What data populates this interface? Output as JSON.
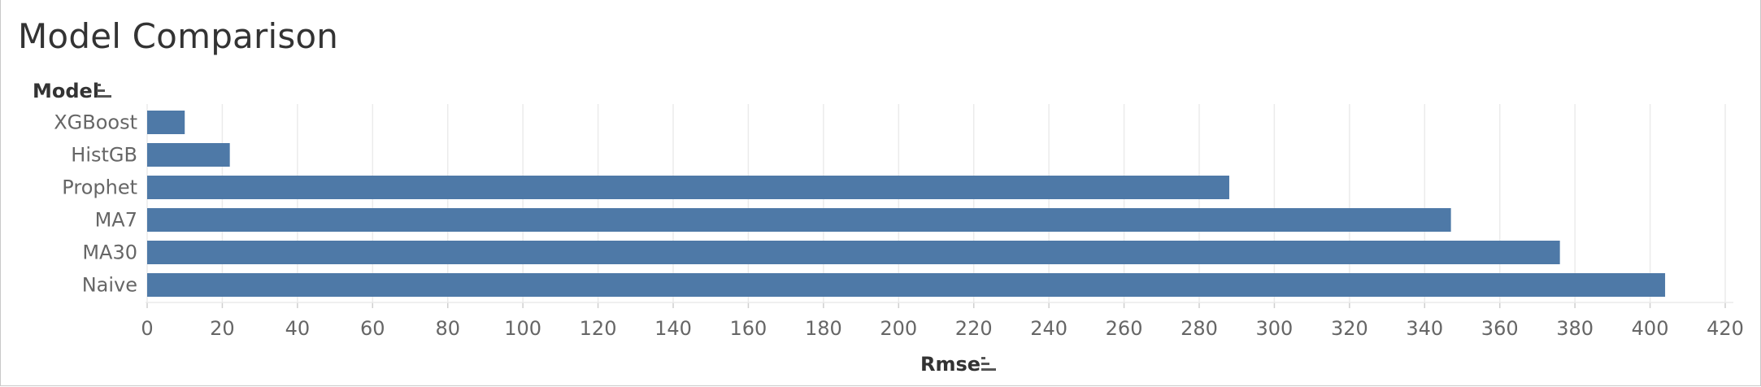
{
  "title": "Model Comparison",
  "colors": {
    "bar": "#4e79a7",
    "grid": "#ebebeb",
    "axis": "#cfcfcf",
    "text": "#666666"
  },
  "icons": {
    "y_sort": "sort-descending-icon",
    "x_sort": "sort-descending-icon"
  },
  "chart_data": {
    "type": "bar",
    "orientation": "horizontal",
    "title": "Model Comparison",
    "ylabel": "Model",
    "xlabel": "Rmse",
    "categories": [
      "XGBoost",
      "HistGB",
      "Prophet",
      "MA7",
      "MA30",
      "Naive"
    ],
    "values": [
      10,
      22,
      288,
      347,
      376,
      404
    ],
    "xlim": [
      0,
      420
    ],
    "xticks": [
      0,
      20,
      40,
      60,
      80,
      100,
      120,
      140,
      160,
      180,
      200,
      220,
      240,
      260,
      280,
      300,
      320,
      340,
      360,
      380,
      400,
      420
    ],
    "grid": true
  }
}
